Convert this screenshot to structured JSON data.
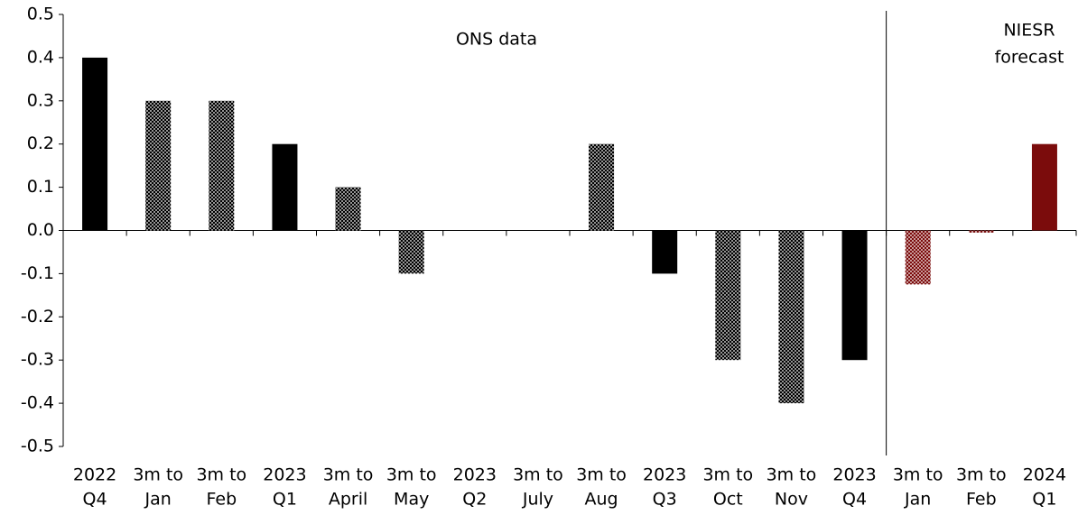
{
  "chart_data": {
    "type": "bar",
    "categories": [
      [
        "2022",
        "Q4"
      ],
      [
        "3m to",
        "Jan"
      ],
      [
        "3m to",
        "Feb"
      ],
      [
        "2023",
        "Q1"
      ],
      [
        "3m to",
        "April"
      ],
      [
        "3m to",
        "May"
      ],
      [
        "2023",
        "Q2"
      ],
      [
        "3m to",
        "July"
      ],
      [
        "3m to",
        "Aug"
      ],
      [
        "2023",
        "Q3"
      ],
      [
        "3m to",
        "Oct"
      ],
      [
        "3m to",
        "Nov"
      ],
      [
        "2023",
        "Q4"
      ],
      [
        "3m to",
        "Jan"
      ],
      [
        "3m to",
        "Feb"
      ],
      [
        "2024",
        "Q1"
      ]
    ],
    "values": [
      0.4,
      0.3,
      0.3,
      0.2,
      0.1,
      -0.1,
      0,
      0,
      0.2,
      -0.1,
      -0.3,
      -0.4,
      -0.3,
      -0.125,
      -0.005,
      0.2
    ],
    "colors": [
      "#000000",
      "#000000",
      "#000000",
      "#000000",
      "#000000",
      "#000000",
      "#000000",
      "#000000",
      "#000000",
      "#000000",
      "#000000",
      "#000000",
      "#000000",
      "#7b0c0c",
      "#7b0c0c",
      "#7b0c0c"
    ],
    "patterns": [
      "solid",
      "dotted",
      "dotted",
      "solid",
      "dotted",
      "dotted",
      "solid",
      "dotted",
      "dotted",
      "solid",
      "dotted",
      "dotted",
      "solid",
      "dotted",
      "dotted",
      "solid"
    ],
    "annotations": [
      {
        "lines": [
          "ONS data"
        ],
        "color": "#000000"
      },
      {
        "lines": [
          "NIESR",
          "forecast"
        ],
        "color": "#8b1a1a"
      }
    ],
    "ylim": [
      -0.5,
      0.5
    ],
    "yticks": [
      0.5,
      0.4,
      0.3,
      0.2,
      0.1,
      {
        "value": 0,
        "label": "0.0"
      },
      -0.1,
      -0.2,
      -0.3,
      -0.4,
      -0.5
    ],
    "grid": false
  }
}
